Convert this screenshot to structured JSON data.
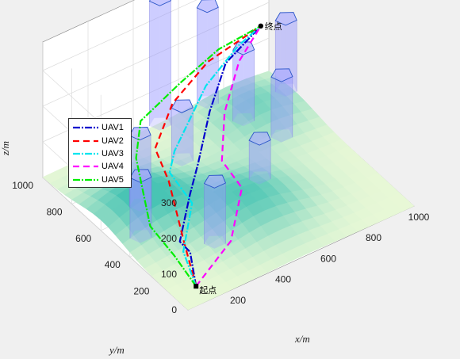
{
  "chart_data": {
    "type": "line3d",
    "xlabel": "x/m",
    "ylabel": "y/m",
    "zlabel": "z/m",
    "xlim": [
      0,
      1000
    ],
    "ylim": [
      0,
      1000
    ],
    "zlim": [
      0,
      300
    ],
    "xticks": [
      "200",
      "400",
      "600",
      "800",
      "1000"
    ],
    "yticks": [
      "200",
      "400",
      "600",
      "800",
      "1000"
    ],
    "zticks": [
      "0",
      "100",
      "200",
      "300"
    ],
    "legend_position": "upper-left",
    "start_label": "起点",
    "goal_label": "终点",
    "start": [
      100,
      100,
      0
    ],
    "goal": [
      900,
      900,
      200
    ],
    "series": [
      {
        "name": "UAV1",
        "color": "#0000cd",
        "dash": "9,2,2,2",
        "points": [
          [
            100,
            100,
            0
          ],
          [
            170,
            250,
            20
          ],
          [
            150,
            290,
            40
          ],
          [
            240,
            360,
            120
          ],
          [
            340,
            460,
            140
          ],
          [
            520,
            660,
            160
          ],
          [
            700,
            830,
            180
          ],
          [
            900,
            900,
            200
          ]
        ]
      },
      {
        "name": "UAV2",
        "color": "#ff0000",
        "dash": "8,5",
        "points": [
          [
            100,
            100,
            0
          ],
          [
            170,
            290,
            30
          ],
          [
            210,
            460,
            130
          ],
          [
            240,
            600,
            160
          ],
          [
            420,
            760,
            175
          ],
          [
            640,
            860,
            190
          ],
          [
            900,
            900,
            200
          ]
        ]
      },
      {
        "name": "UAV3",
        "color": "#00e5ee",
        "dash": "9,2,2,2",
        "points": [
          [
            100,
            100,
            0
          ],
          [
            140,
            250,
            30
          ],
          [
            230,
            330,
            110
          ],
          [
            240,
            500,
            130
          ],
          [
            300,
            560,
            150
          ],
          [
            580,
            780,
            170
          ],
          [
            780,
            870,
            190
          ],
          [
            900,
            900,
            200
          ]
        ]
      },
      {
        "name": "UAV4",
        "color": "#ff00ff",
        "dash": "8,5",
        "points": [
          [
            100,
            100,
            0
          ],
          [
            280,
            140,
            60
          ],
          [
            380,
            220,
            150
          ],
          [
            420,
            420,
            140
          ],
          [
            560,
            620,
            160
          ],
          [
            740,
            800,
            185
          ],
          [
            900,
            900,
            200
          ]
        ]
      },
      {
        "name": "UAV5",
        "color": "#00ee00",
        "dash": "9,2,2,2",
        "points": [
          [
            100,
            100,
            0
          ],
          [
            100,
            250,
            30
          ],
          [
            90,
            400,
            60
          ],
          [
            130,
            560,
            180
          ],
          [
            240,
            700,
            200
          ],
          [
            480,
            800,
            200
          ],
          [
            700,
            880,
            200
          ],
          [
            900,
            900,
            200
          ]
        ]
      }
    ],
    "obstacles": [
      {
        "x": 100,
        "y": 480,
        "h": 170
      },
      {
        "x": 200,
        "y": 640,
        "h": 200
      },
      {
        "x": 300,
        "y": 280,
        "h": 170
      },
      {
        "x": 470,
        "y": 770,
        "h": 150
      },
      {
        "x": 520,
        "y": 1000,
        "h": 350
      },
      {
        "x": 640,
        "y": 500,
        "h": 110
      },
      {
        "x": 730,
        "y": 1000,
        "h": 270
      },
      {
        "x": 780,
        "y": 830,
        "h": 200
      },
      {
        "x": 840,
        "y": 660,
        "h": 170
      },
      {
        "x": 1000,
        "y": 880,
        "h": 200
      }
    ],
    "terrain_hills": [
      {
        "x": 180,
        "y": 600,
        "peak": 60,
        "spread": 150
      },
      {
        "x": 500,
        "y": 360,
        "peak": 50,
        "spread": 160
      },
      {
        "x": 820,
        "y": 820,
        "peak": 40,
        "spread": 140
      }
    ]
  }
}
